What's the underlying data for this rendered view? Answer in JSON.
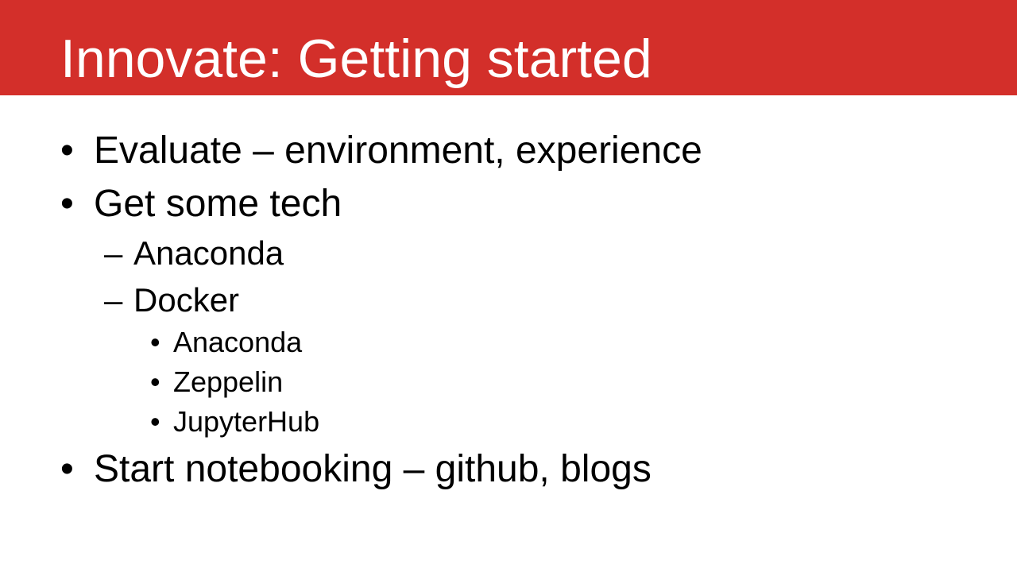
{
  "slide": {
    "title": "Innovate: Getting started",
    "colors": {
      "title_bar": "#d32f2a",
      "title_text": "#ffffff",
      "body_text": "#000000"
    },
    "bullets": [
      {
        "marker": "•",
        "text": "Evaluate – environment, experience"
      },
      {
        "marker": "•",
        "text": "Get some tech"
      },
      {
        "marker": "–",
        "text": "Anaconda"
      },
      {
        "marker": "–",
        "text": "Docker"
      },
      {
        "marker": "•",
        "text": "Anaconda"
      },
      {
        "marker": "•",
        "text": "Zeppelin"
      },
      {
        "marker": "•",
        "text": "JupyterHub"
      },
      {
        "marker": "•",
        "text": "Start notebooking – github, blogs"
      }
    ]
  }
}
